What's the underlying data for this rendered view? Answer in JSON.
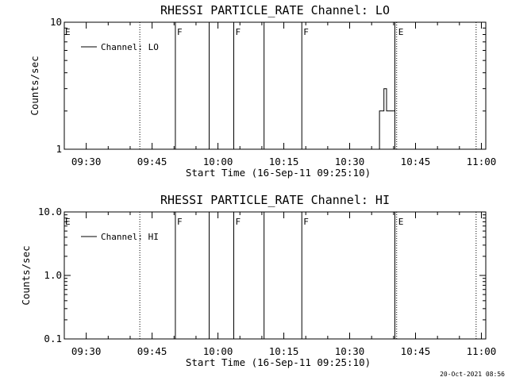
{
  "chart_data": [
    {
      "type": "line",
      "title": "RHESSI PARTICLE_RATE Channel: LO",
      "xlabel": "Start Time (16-Sep-11 09:25:10)",
      "ylabel": "Counts/sec",
      "y_scale": "log",
      "ylim": [
        1,
        10
      ],
      "y_ticks": [
        "1",
        "10"
      ],
      "xlim_minutes_after_0925": [
        0,
        96
      ],
      "x_ticks": [
        {
          "label": "09:30",
          "t": 5
        },
        {
          "label": "09:45",
          "t": 20
        },
        {
          "label": "10:00",
          "t": 35
        },
        {
          "label": "10:15",
          "t": 50
        },
        {
          "label": "10:30",
          "t": 65
        },
        {
          "label": "10:45",
          "t": 80
        },
        {
          "label": "11:00",
          "t": 95
        }
      ],
      "legend": {
        "placement": "top-left",
        "entries": [
          "Channel: LO"
        ]
      },
      "series": [
        {
          "name": "Channel: LO",
          "points": [
            [
              71.8,
              1
            ],
            [
              71.8,
              2
            ],
            [
              72.8,
              2
            ],
            [
              72.8,
              3
            ],
            [
              73.4,
              3
            ],
            [
              73.4,
              2
            ],
            [
              75.3,
              2
            ],
            [
              75.3,
              1
            ]
          ]
        }
      ],
      "vertical_lines": [
        {
          "t": 17.2,
          "style": "dotted",
          "flag": ""
        },
        {
          "t": 25.3,
          "style": "solid",
          "flag": "F"
        },
        {
          "t": 33.0,
          "style": "solid",
          "flag": ""
        },
        {
          "t": 38.6,
          "style": "solid",
          "flag": "F"
        },
        {
          "t": 45.5,
          "style": "solid",
          "flag": ""
        },
        {
          "t": 54.1,
          "style": "solid",
          "flag": "F"
        },
        {
          "t": 75.3,
          "style": "solid",
          "flag": ""
        },
        {
          "t": 75.7,
          "style": "dotted",
          "flag": "E"
        },
        {
          "t": 93.8,
          "style": "dotted",
          "flag": ""
        }
      ],
      "left_flag": "E"
    },
    {
      "type": "line",
      "title": "RHESSI PARTICLE_RATE Channel: HI",
      "xlabel": "Start Time (16-Sep-11 09:25:10)",
      "ylabel": "Counts/sec",
      "y_scale": "log",
      "ylim": [
        0.1,
        10
      ],
      "y_ticks": [
        "0.1",
        "1.0",
        "10.0"
      ],
      "xlim_minutes_after_0925": [
        0,
        96
      ],
      "x_ticks": [
        {
          "label": "09:30",
          "t": 5
        },
        {
          "label": "09:45",
          "t": 20
        },
        {
          "label": "10:00",
          "t": 35
        },
        {
          "label": "10:15",
          "t": 50
        },
        {
          "label": "10:30",
          "t": 65
        },
        {
          "label": "10:45",
          "t": 80
        },
        {
          "label": "11:00",
          "t": 95
        }
      ],
      "legend": {
        "placement": "top-left",
        "entries": [
          "Channel: HI"
        ]
      },
      "series": [
        {
          "name": "Channel: HI",
          "points": []
        }
      ],
      "vertical_lines": [
        {
          "t": 17.2,
          "style": "dotted",
          "flag": ""
        },
        {
          "t": 25.3,
          "style": "solid",
          "flag": "F"
        },
        {
          "t": 33.0,
          "style": "solid",
          "flag": ""
        },
        {
          "t": 38.6,
          "style": "solid",
          "flag": "F"
        },
        {
          "t": 45.5,
          "style": "solid",
          "flag": ""
        },
        {
          "t": 54.1,
          "style": "solid",
          "flag": "F"
        },
        {
          "t": 75.3,
          "style": "solid",
          "flag": ""
        },
        {
          "t": 75.7,
          "style": "dotted",
          "flag": "E"
        },
        {
          "t": 93.8,
          "style": "dotted",
          "flag": ""
        }
      ],
      "left_flag": "E"
    }
  ],
  "footer": {
    "timestamp": "20-Oct-2021 08:56"
  }
}
